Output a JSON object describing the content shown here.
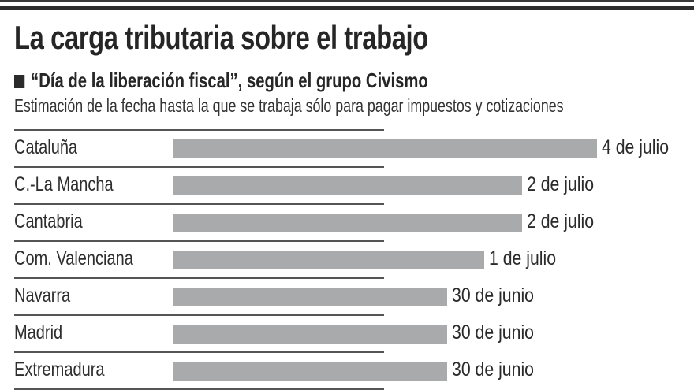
{
  "chart_data": {
    "type": "bar",
    "orientation": "horizontal",
    "title": "La carga tributaria sobre el trabajo",
    "subtitle": "“Día de la liberación fiscal”, según el grupo Civismo",
    "description": "Estimación de la fecha hasta la que se trabaja sólo para pagar impuestos y cotizaciones",
    "categories": [
      "Cataluña",
      "C.-La Mancha",
      "Cantabria",
      "Com. Valenciana",
      "Navarra",
      "Madrid",
      "Extremadura"
    ],
    "values_day_of_year": [
      185,
      183,
      183,
      182,
      181,
      181,
      181
    ],
    "data_labels": [
      "4 de julio",
      "2 de julio",
      "2 de julio",
      "1 de julio",
      "30 de junio",
      "30 de junio",
      "30 de junio"
    ],
    "xlim": [
      173.7,
      185
    ],
    "grid": false,
    "colors": {
      "bar": "#a9aaac",
      "text": "#2b2b2b"
    }
  }
}
